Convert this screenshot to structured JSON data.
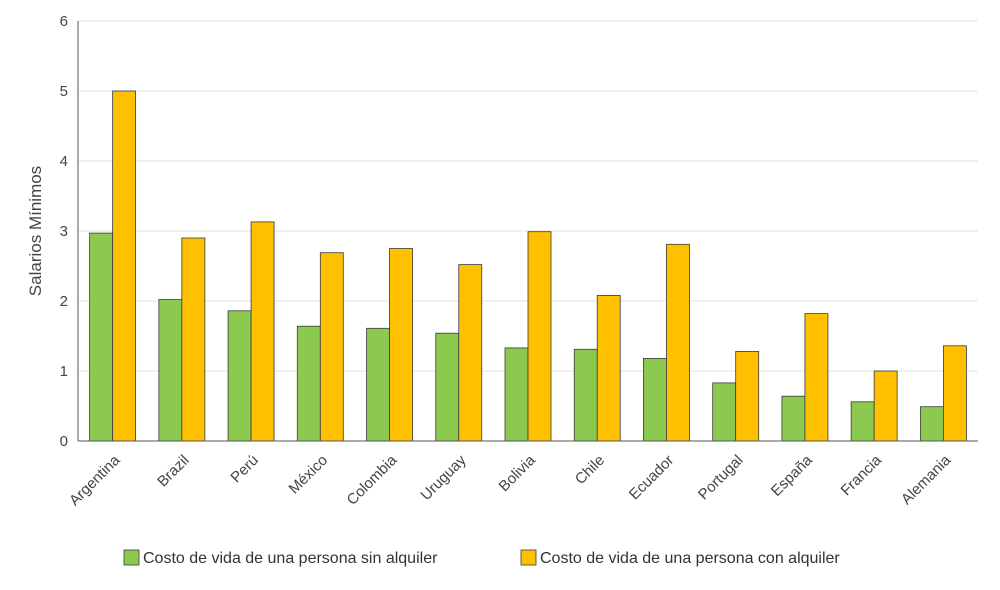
{
  "chart_data": {
    "type": "bar",
    "title": "",
    "xlabel": "",
    "ylabel": "Salarios Mínimos",
    "ylim": [
      0,
      6
    ],
    "yticks": [
      0,
      1,
      2,
      3,
      4,
      5,
      6
    ],
    "grid": true,
    "legend_position": "bottom",
    "categories": [
      "Argentina",
      "Brazil",
      "Perú",
      "México",
      "Colombia",
      "Uruguay",
      "Bolivia",
      "Chile",
      "Ecuador",
      "Portugal",
      "España",
      "Francia",
      "Alemania"
    ],
    "series": [
      {
        "name": "Costo de vida de una persona sin alquiler",
        "color": "#8cc94f",
        "values": [
          2.97,
          2.02,
          1.86,
          1.64,
          1.61,
          1.54,
          1.33,
          1.31,
          1.18,
          0.83,
          0.64,
          0.56,
          0.49
        ]
      },
      {
        "name": "Costo de vida de una persona con alquiler",
        "color": "#ffc000",
        "values": [
          5.0,
          2.9,
          3.13,
          2.69,
          2.75,
          2.52,
          2.99,
          2.08,
          2.81,
          1.28,
          1.82,
          1.0,
          1.36
        ]
      }
    ]
  }
}
